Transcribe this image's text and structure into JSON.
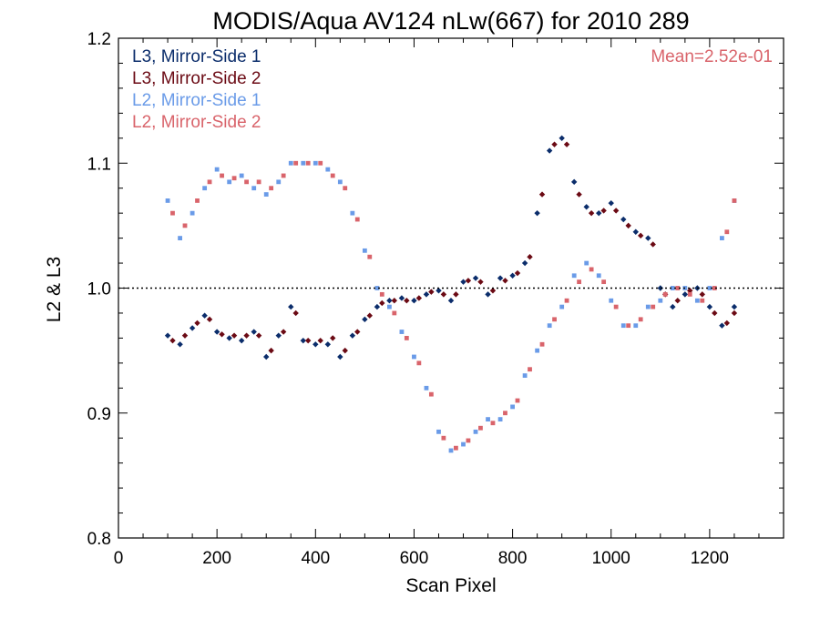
{
  "chart_data": {
    "type": "scatter",
    "title": "MODIS/Aqua AV124 nLw(667) for 2010 289",
    "xlabel": "Scan Pixel",
    "ylabel": "L2 & L3",
    "xlim": [
      0,
      1350
    ],
    "ylim": [
      0.8,
      1.2
    ],
    "xticks": [
      0,
      200,
      400,
      600,
      800,
      1000,
      1200
    ],
    "yticks": [
      0.8,
      0.9,
      1.0,
      1.1,
      1.2
    ],
    "xtick_labels": [
      "0",
      "200",
      "400",
      "600",
      "800",
      "1000",
      "1200"
    ],
    "ytick_labels": [
      "0.8",
      "0.9",
      "1.0",
      "1.1",
      "1.2"
    ],
    "reference_line": 1.0,
    "annotation": "Mean=2.52e-01",
    "legend_position": "top-left",
    "colors": {
      "l3_ms1": "#0b2d6b",
      "l3_ms2": "#6b0a14",
      "l2_ms1": "#6a9be8",
      "l2_ms2": "#d9646b",
      "annotation": "#d9646b"
    },
    "series": [
      {
        "name": "L3, Mirror-Side 1",
        "marker": "diamond",
        "color": "#0b2d6b",
        "x": [
          100,
          125,
          150,
          175,
          200,
          225,
          250,
          275,
          300,
          325,
          350,
          375,
          400,
          425,
          450,
          475,
          500,
          525,
          550,
          575,
          600,
          625,
          650,
          675,
          700,
          725,
          750,
          775,
          800,
          825,
          850,
          875,
          900,
          925,
          950,
          975,
          1000,
          1025,
          1050,
          1075,
          1100,
          1125,
          1150,
          1175,
          1200,
          1225,
          1250
        ],
        "y": [
          0.962,
          0.955,
          0.968,
          0.978,
          0.965,
          0.96,
          0.958,
          0.965,
          0.945,
          0.962,
          0.985,
          0.958,
          0.955,
          0.955,
          0.945,
          0.962,
          0.975,
          0.985,
          0.99,
          0.992,
          0.99,
          0.995,
          0.998,
          0.99,
          1.005,
          1.008,
          0.995,
          1.008,
          1.01,
          1.02,
          1.06,
          1.11,
          1.12,
          1.085,
          1.065,
          1.06,
          1.068,
          1.055,
          1.045,
          1.04,
          1.0,
          0.985,
          0.995,
          1.0,
          0.985,
          0.97,
          0.985
        ]
      },
      {
        "name": "L3, Mirror-Side 2",
        "marker": "diamond",
        "color": "#6b0a14",
        "x": [
          110,
          135,
          160,
          185,
          210,
          235,
          260,
          285,
          310,
          335,
          360,
          385,
          410,
          435,
          460,
          485,
          510,
          535,
          560,
          585,
          610,
          635,
          660,
          685,
          710,
          735,
          760,
          785,
          810,
          835,
          860,
          885,
          910,
          935,
          960,
          985,
          1010,
          1035,
          1060,
          1085,
          1110,
          1135,
          1160,
          1185,
          1210,
          1235,
          1250
        ],
        "y": [
          0.958,
          0.962,
          0.972,
          0.975,
          0.963,
          0.962,
          0.962,
          0.962,
          0.95,
          0.965,
          0.98,
          0.958,
          0.958,
          0.96,
          0.95,
          0.965,
          0.978,
          0.988,
          0.99,
          0.99,
          0.992,
          0.997,
          0.995,
          0.995,
          1.006,
          1.005,
          0.998,
          1.006,
          1.012,
          1.025,
          1.075,
          1.115,
          1.115,
          1.075,
          1.06,
          1.062,
          1.062,
          1.05,
          1.042,
          1.035,
          0.995,
          0.99,
          0.998,
          0.995,
          0.98,
          0.972,
          0.98
        ]
      },
      {
        "name": "L2, Mirror-Side 1",
        "marker": "square",
        "color": "#6a9be8",
        "x": [
          100,
          125,
          150,
          175,
          200,
          225,
          250,
          275,
          300,
          325,
          350,
          375,
          400,
          425,
          450,
          475,
          500,
          525,
          550,
          575,
          600,
          625,
          650,
          675,
          700,
          725,
          750,
          775,
          800,
          825,
          850,
          875,
          900,
          925,
          950,
          975,
          1000,
          1025,
          1050,
          1075,
          1100,
          1125,
          1150,
          1175,
          1200,
          1225,
          1250
        ],
        "y": [
          1.07,
          1.04,
          1.06,
          1.08,
          1.095,
          1.085,
          1.09,
          1.08,
          1.075,
          1.085,
          1.1,
          1.1,
          1.1,
          1.095,
          1.085,
          1.06,
          1.03,
          1.0,
          0.985,
          0.965,
          0.945,
          0.92,
          0.885,
          0.87,
          0.875,
          0.885,
          0.895,
          0.895,
          0.905,
          0.93,
          0.95,
          0.97,
          0.985,
          1.01,
          1.02,
          1.01,
          0.99,
          0.97,
          0.97,
          0.985,
          0.99,
          1.0,
          1.0,
          0.99,
          1.0,
          1.04,
          1.07
        ]
      },
      {
        "name": "L2, Mirror-Side 2",
        "marker": "square",
        "color": "#d9646b",
        "x": [
          110,
          135,
          160,
          185,
          210,
          235,
          260,
          285,
          310,
          335,
          360,
          385,
          410,
          435,
          460,
          485,
          510,
          535,
          560,
          585,
          610,
          635,
          660,
          685,
          710,
          735,
          760,
          785,
          810,
          835,
          860,
          885,
          910,
          935,
          960,
          985,
          1010,
          1035,
          1060,
          1085,
          1110,
          1135,
          1160,
          1185,
          1210,
          1235,
          1250
        ],
        "y": [
          1.06,
          1.05,
          1.07,
          1.085,
          1.09,
          1.088,
          1.085,
          1.085,
          1.08,
          1.09,
          1.1,
          1.1,
          1.1,
          1.09,
          1.08,
          1.055,
          1.025,
          0.995,
          0.98,
          0.96,
          0.94,
          0.915,
          0.88,
          0.872,
          0.878,
          0.888,
          0.892,
          0.9,
          0.91,
          0.935,
          0.955,
          0.975,
          0.99,
          1.005,
          1.015,
          1.005,
          0.985,
          0.97,
          0.975,
          0.985,
          0.995,
          1.0,
          0.995,
          0.99,
          1.0,
          1.045,
          1.07
        ]
      }
    ]
  }
}
